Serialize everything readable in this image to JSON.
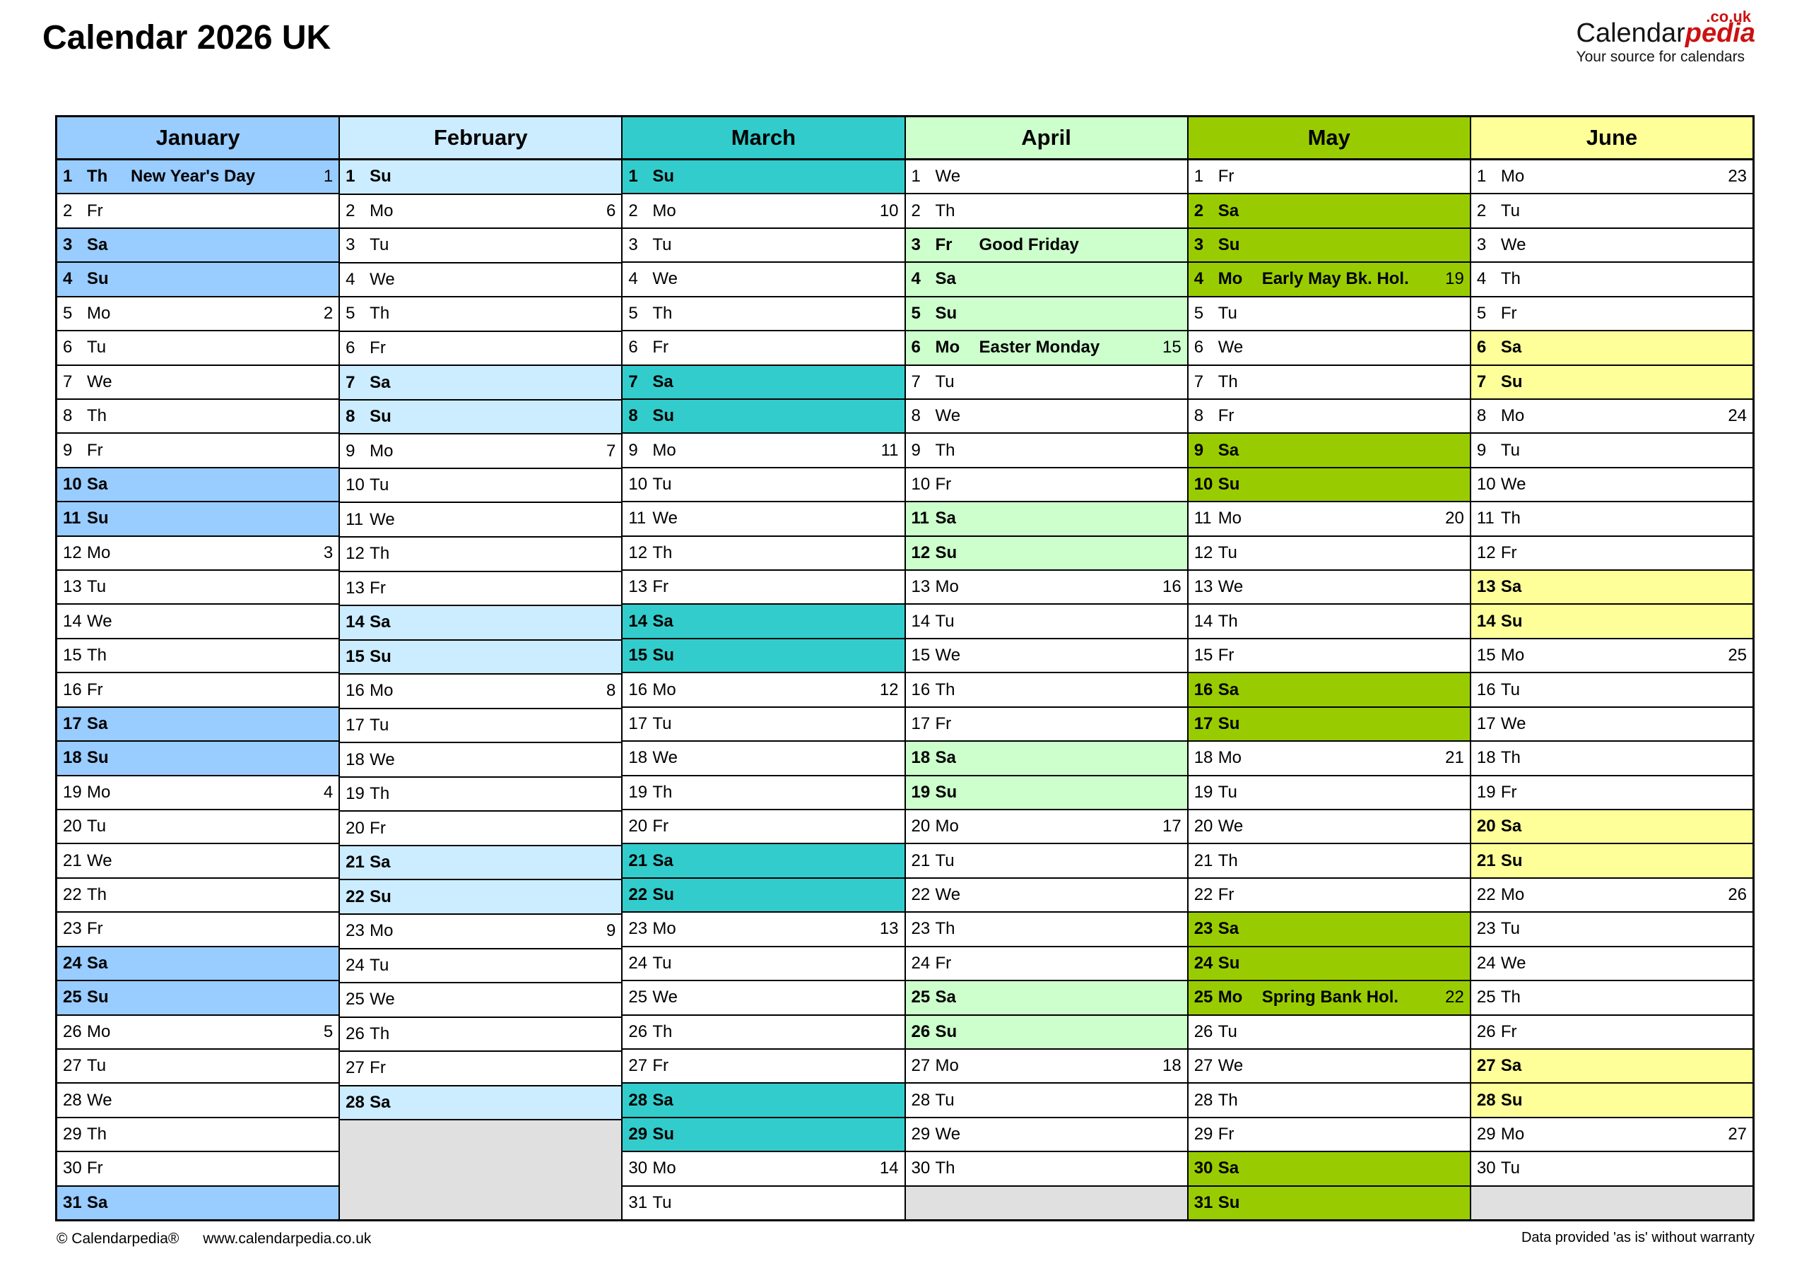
{
  "title": "Calendar 2026 UK",
  "logo": {
    "brand_black": "Calendar",
    "brand_red": "pedia",
    "tld": ".co.uk",
    "tagline": "Your source for calendars"
  },
  "footer": {
    "copyright": "© Calendarpedia®",
    "url": "www.calendarpedia.co.uk",
    "disclaimer": "Data provided 'as is' without warranty"
  },
  "colors": {
    "empty_cell": "#E0E0E0",
    "border": "#000000",
    "logo_red": "#CC1111"
  },
  "months": [
    {
      "name": "January",
      "color": "#99CCFF",
      "filler": 0,
      "days": [
        {
          "d": 1,
          "wd": "Th",
          "hol": "New Year's Day",
          "wk": 1,
          "hl": true
        },
        {
          "d": 2,
          "wd": "Fr"
        },
        {
          "d": 3,
          "wd": "Sa",
          "hl": true
        },
        {
          "d": 4,
          "wd": "Su",
          "hl": true
        },
        {
          "d": 5,
          "wd": "Mo",
          "wk": 2
        },
        {
          "d": 6,
          "wd": "Tu"
        },
        {
          "d": 7,
          "wd": "We"
        },
        {
          "d": 8,
          "wd": "Th"
        },
        {
          "d": 9,
          "wd": "Fr"
        },
        {
          "d": 10,
          "wd": "Sa",
          "hl": true
        },
        {
          "d": 11,
          "wd": "Su",
          "hl": true
        },
        {
          "d": 12,
          "wd": "Mo",
          "wk": 3
        },
        {
          "d": 13,
          "wd": "Tu"
        },
        {
          "d": 14,
          "wd": "We"
        },
        {
          "d": 15,
          "wd": "Th"
        },
        {
          "d": 16,
          "wd": "Fr"
        },
        {
          "d": 17,
          "wd": "Sa",
          "hl": true
        },
        {
          "d": 18,
          "wd": "Su",
          "hl": true
        },
        {
          "d": 19,
          "wd": "Mo",
          "wk": 4
        },
        {
          "d": 20,
          "wd": "Tu"
        },
        {
          "d": 21,
          "wd": "We"
        },
        {
          "d": 22,
          "wd": "Th"
        },
        {
          "d": 23,
          "wd": "Fr"
        },
        {
          "d": 24,
          "wd": "Sa",
          "hl": true
        },
        {
          "d": 25,
          "wd": "Su",
          "hl": true
        },
        {
          "d": 26,
          "wd": "Mo",
          "wk": 5
        },
        {
          "d": 27,
          "wd": "Tu"
        },
        {
          "d": 28,
          "wd": "We"
        },
        {
          "d": 29,
          "wd": "Th"
        },
        {
          "d": 30,
          "wd": "Fr"
        },
        {
          "d": 31,
          "wd": "Sa",
          "hl": true
        }
      ]
    },
    {
      "name": "February",
      "color": "#CCECFF",
      "filler": 3,
      "days": [
        {
          "d": 1,
          "wd": "Su",
          "hl": true
        },
        {
          "d": 2,
          "wd": "Mo",
          "wk": 6
        },
        {
          "d": 3,
          "wd": "Tu"
        },
        {
          "d": 4,
          "wd": "We"
        },
        {
          "d": 5,
          "wd": "Th"
        },
        {
          "d": 6,
          "wd": "Fr"
        },
        {
          "d": 7,
          "wd": "Sa",
          "hl": true
        },
        {
          "d": 8,
          "wd": "Su",
          "hl": true
        },
        {
          "d": 9,
          "wd": "Mo",
          "wk": 7
        },
        {
          "d": 10,
          "wd": "Tu"
        },
        {
          "d": 11,
          "wd": "We"
        },
        {
          "d": 12,
          "wd": "Th"
        },
        {
          "d": 13,
          "wd": "Fr"
        },
        {
          "d": 14,
          "wd": "Sa",
          "hl": true
        },
        {
          "d": 15,
          "wd": "Su",
          "hl": true
        },
        {
          "d": 16,
          "wd": "Mo",
          "wk": 8
        },
        {
          "d": 17,
          "wd": "Tu"
        },
        {
          "d": 18,
          "wd": "We"
        },
        {
          "d": 19,
          "wd": "Th"
        },
        {
          "d": 20,
          "wd": "Fr"
        },
        {
          "d": 21,
          "wd": "Sa",
          "hl": true
        },
        {
          "d": 22,
          "wd": "Su",
          "hl": true
        },
        {
          "d": 23,
          "wd": "Mo",
          "wk": 9
        },
        {
          "d": 24,
          "wd": "Tu"
        },
        {
          "d": 25,
          "wd": "We"
        },
        {
          "d": 26,
          "wd": "Th"
        },
        {
          "d": 27,
          "wd": "Fr"
        },
        {
          "d": 28,
          "wd": "Sa",
          "hl": true
        }
      ]
    },
    {
      "name": "March",
      "color": "#33CCCC",
      "filler": 0,
      "days": [
        {
          "d": 1,
          "wd": "Su",
          "hl": true
        },
        {
          "d": 2,
          "wd": "Mo",
          "wk": 10
        },
        {
          "d": 3,
          "wd": "Tu"
        },
        {
          "d": 4,
          "wd": "We"
        },
        {
          "d": 5,
          "wd": "Th"
        },
        {
          "d": 6,
          "wd": "Fr"
        },
        {
          "d": 7,
          "wd": "Sa",
          "hl": true
        },
        {
          "d": 8,
          "wd": "Su",
          "hl": true
        },
        {
          "d": 9,
          "wd": "Mo",
          "wk": 11
        },
        {
          "d": 10,
          "wd": "Tu"
        },
        {
          "d": 11,
          "wd": "We"
        },
        {
          "d": 12,
          "wd": "Th"
        },
        {
          "d": 13,
          "wd": "Fr"
        },
        {
          "d": 14,
          "wd": "Sa",
          "hl": true
        },
        {
          "d": 15,
          "wd": "Su",
          "hl": true
        },
        {
          "d": 16,
          "wd": "Mo",
          "wk": 12
        },
        {
          "d": 17,
          "wd": "Tu"
        },
        {
          "d": 18,
          "wd": "We"
        },
        {
          "d": 19,
          "wd": "Th"
        },
        {
          "d": 20,
          "wd": "Fr"
        },
        {
          "d": 21,
          "wd": "Sa",
          "hl": true
        },
        {
          "d": 22,
          "wd": "Su",
          "hl": true
        },
        {
          "d": 23,
          "wd": "Mo",
          "wk": 13
        },
        {
          "d": 24,
          "wd": "Tu"
        },
        {
          "d": 25,
          "wd": "We"
        },
        {
          "d": 26,
          "wd": "Th"
        },
        {
          "d": 27,
          "wd": "Fr"
        },
        {
          "d": 28,
          "wd": "Sa",
          "hl": true
        },
        {
          "d": 29,
          "wd": "Su",
          "hl": true
        },
        {
          "d": 30,
          "wd": "Mo",
          "wk": 14
        },
        {
          "d": 31,
          "wd": "Tu"
        }
      ]
    },
    {
      "name": "April",
      "color": "#CCFFCC",
      "filler": 1,
      "days": [
        {
          "d": 1,
          "wd": "We"
        },
        {
          "d": 2,
          "wd": "Th"
        },
        {
          "d": 3,
          "wd": "Fr",
          "hol": "Good Friday",
          "hl": true
        },
        {
          "d": 4,
          "wd": "Sa",
          "hl": true
        },
        {
          "d": 5,
          "wd": "Su",
          "hl": true
        },
        {
          "d": 6,
          "wd": "Mo",
          "hol": "Easter Monday",
          "wk": 15,
          "hl": true
        },
        {
          "d": 7,
          "wd": "Tu"
        },
        {
          "d": 8,
          "wd": "We"
        },
        {
          "d": 9,
          "wd": "Th"
        },
        {
          "d": 10,
          "wd": "Fr"
        },
        {
          "d": 11,
          "wd": "Sa",
          "hl": true
        },
        {
          "d": 12,
          "wd": "Su",
          "hl": true
        },
        {
          "d": 13,
          "wd": "Mo",
          "wk": 16
        },
        {
          "d": 14,
          "wd": "Tu"
        },
        {
          "d": 15,
          "wd": "We"
        },
        {
          "d": 16,
          "wd": "Th"
        },
        {
          "d": 17,
          "wd": "Fr"
        },
        {
          "d": 18,
          "wd": "Sa",
          "hl": true
        },
        {
          "d": 19,
          "wd": "Su",
          "hl": true
        },
        {
          "d": 20,
          "wd": "Mo",
          "wk": 17
        },
        {
          "d": 21,
          "wd": "Tu"
        },
        {
          "d": 22,
          "wd": "We"
        },
        {
          "d": 23,
          "wd": "Th"
        },
        {
          "d": 24,
          "wd": "Fr"
        },
        {
          "d": 25,
          "wd": "Sa",
          "hl": true
        },
        {
          "d": 26,
          "wd": "Su",
          "hl": true
        },
        {
          "d": 27,
          "wd": "Mo",
          "wk": 18
        },
        {
          "d": 28,
          "wd": "Tu"
        },
        {
          "d": 29,
          "wd": "We"
        },
        {
          "d": 30,
          "wd": "Th"
        }
      ]
    },
    {
      "name": "May",
      "color": "#99CC00",
      "filler": 0,
      "days": [
        {
          "d": 1,
          "wd": "Fr"
        },
        {
          "d": 2,
          "wd": "Sa",
          "hl": true
        },
        {
          "d": 3,
          "wd": "Su",
          "hl": true
        },
        {
          "d": 4,
          "wd": "Mo",
          "hol": "Early May Bk. Hol.",
          "wk": 19,
          "hl": true
        },
        {
          "d": 5,
          "wd": "Tu"
        },
        {
          "d": 6,
          "wd": "We"
        },
        {
          "d": 7,
          "wd": "Th"
        },
        {
          "d": 8,
          "wd": "Fr"
        },
        {
          "d": 9,
          "wd": "Sa",
          "hl": true
        },
        {
          "d": 10,
          "wd": "Su",
          "hl": true
        },
        {
          "d": 11,
          "wd": "Mo",
          "wk": 20
        },
        {
          "d": 12,
          "wd": "Tu"
        },
        {
          "d": 13,
          "wd": "We"
        },
        {
          "d": 14,
          "wd": "Th"
        },
        {
          "d": 15,
          "wd": "Fr"
        },
        {
          "d": 16,
          "wd": "Sa",
          "hl": true
        },
        {
          "d": 17,
          "wd": "Su",
          "hl": true
        },
        {
          "d": 18,
          "wd": "Mo",
          "wk": 21
        },
        {
          "d": 19,
          "wd": "Tu"
        },
        {
          "d": 20,
          "wd": "We"
        },
        {
          "d": 21,
          "wd": "Th"
        },
        {
          "d": 22,
          "wd": "Fr"
        },
        {
          "d": 23,
          "wd": "Sa",
          "hl": true
        },
        {
          "d": 24,
          "wd": "Su",
          "hl": true
        },
        {
          "d": 25,
          "wd": "Mo",
          "hol": "Spring Bank Hol.",
          "wk": 22,
          "hl": true
        },
        {
          "d": 26,
          "wd": "Tu"
        },
        {
          "d": 27,
          "wd": "We"
        },
        {
          "d": 28,
          "wd": "Th"
        },
        {
          "d": 29,
          "wd": "Fr"
        },
        {
          "d": 30,
          "wd": "Sa",
          "hl": true
        },
        {
          "d": 31,
          "wd": "Su",
          "hl": true
        }
      ]
    },
    {
      "name": "June",
      "color": "#FFFF99",
      "filler": 1,
      "days": [
        {
          "d": 1,
          "wd": "Mo",
          "wk": 23
        },
        {
          "d": 2,
          "wd": "Tu"
        },
        {
          "d": 3,
          "wd": "We"
        },
        {
          "d": 4,
          "wd": "Th"
        },
        {
          "d": 5,
          "wd": "Fr"
        },
        {
          "d": 6,
          "wd": "Sa",
          "hl": true
        },
        {
          "d": 7,
          "wd": "Su",
          "hl": true
        },
        {
          "d": 8,
          "wd": "Mo",
          "wk": 24
        },
        {
          "d": 9,
          "wd": "Tu"
        },
        {
          "d": 10,
          "wd": "We"
        },
        {
          "d": 11,
          "wd": "Th"
        },
        {
          "d": 12,
          "wd": "Fr"
        },
        {
          "d": 13,
          "wd": "Sa",
          "hl": true
        },
        {
          "d": 14,
          "wd": "Su",
          "hl": true
        },
        {
          "d": 15,
          "wd": "Mo",
          "wk": 25
        },
        {
          "d": 16,
          "wd": "Tu"
        },
        {
          "d": 17,
          "wd": "We"
        },
        {
          "d": 18,
          "wd": "Th"
        },
        {
          "d": 19,
          "wd": "Fr"
        },
        {
          "d": 20,
          "wd": "Sa",
          "hl": true
        },
        {
          "d": 21,
          "wd": "Su",
          "hl": true
        },
        {
          "d": 22,
          "wd": "Mo",
          "wk": 26
        },
        {
          "d": 23,
          "wd": "Tu"
        },
        {
          "d": 24,
          "wd": "We"
        },
        {
          "d": 25,
          "wd": "Th"
        },
        {
          "d": 26,
          "wd": "Fr"
        },
        {
          "d": 27,
          "wd": "Sa",
          "hl": true
        },
        {
          "d": 28,
          "wd": "Su",
          "hl": true
        },
        {
          "d": 29,
          "wd": "Mo",
          "wk": 27
        },
        {
          "d": 30,
          "wd": "Tu"
        }
      ]
    }
  ]
}
